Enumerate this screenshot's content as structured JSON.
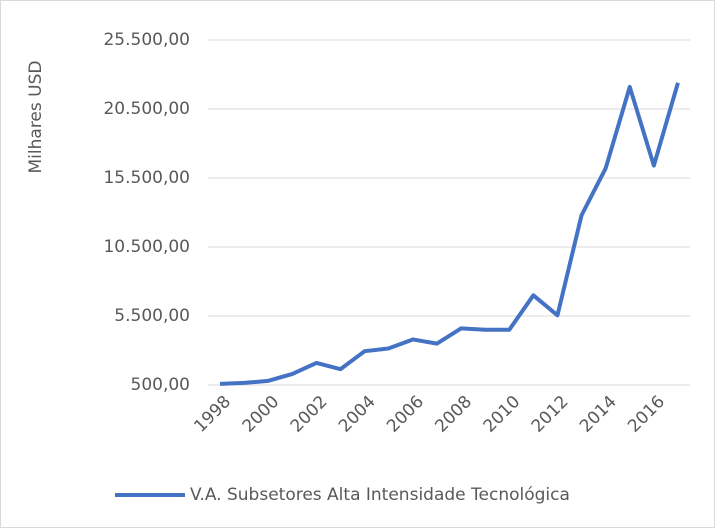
{
  "chart_data": {
    "type": "line",
    "y_label": "Milhares USD",
    "x": [
      1998,
      1999,
      2000,
      2001,
      2002,
      2003,
      2004,
      2005,
      2006,
      2007,
      2008,
      2009,
      2010,
      2011,
      2012,
      2013,
      2014,
      2015,
      2016,
      2017
    ],
    "series": [
      {
        "name": "V.A. Subsetores Alta Intensidade Tecnológica",
        "color": "#4472c4",
        "values": [
          580,
          650,
          800,
          1300,
          2100,
          1650,
          2950,
          3150,
          3800,
          3500,
          4600,
          4500,
          4500,
          7000,
          5550,
          12800,
          16200,
          22100,
          16400,
          22400
        ]
      }
    ],
    "xlim": [
      1997.5,
      2017.5
    ],
    "xticks": [
      1998,
      2000,
      2002,
      2004,
      2006,
      2008,
      2010,
      2012,
      2014,
      2016
    ],
    "ylim": [
      500,
      25500
    ],
    "yticks": [
      {
        "value": 500,
        "label": "500,00"
      },
      {
        "value": 5500,
        "label": "5.500,00"
      },
      {
        "value": 10500,
        "label": "10.500,00"
      },
      {
        "value": 15500,
        "label": "15.500,00"
      },
      {
        "value": 20500,
        "label": "20.500,00"
      },
      {
        "value": 25500,
        "label": "25.500,00"
      }
    ],
    "grid": true,
    "legend": "bottom"
  }
}
